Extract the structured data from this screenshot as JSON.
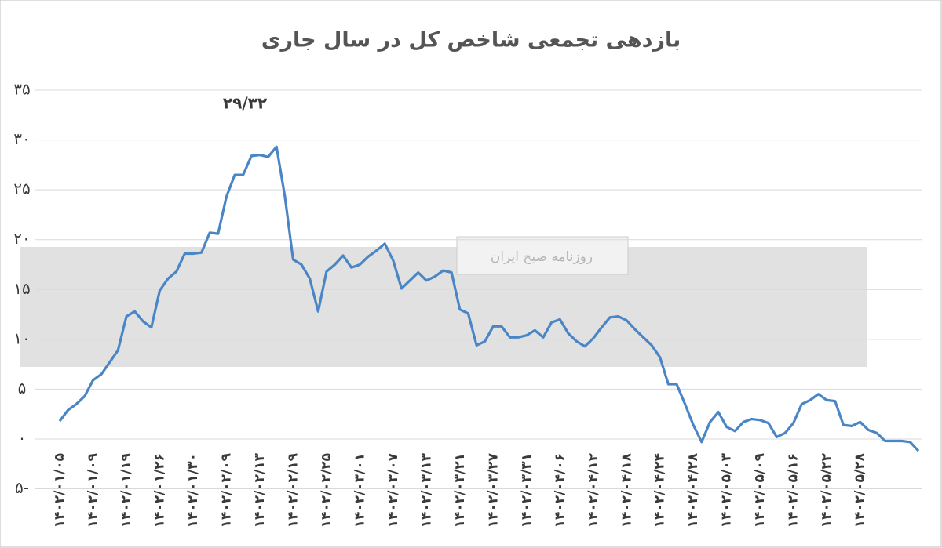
{
  "chart_data": {
    "type": "line",
    "title": "بازدهی تجمعی شاخص کل در سال جاری",
    "annotation": "۲۹/۳۲",
    "watermark": "روزنامه صبح ایران",
    "categories": [
      "۱۴۰۲/۰۱/۰۵",
      null,
      null,
      null,
      "۱۴۰۲/۰۱/۰۹",
      null,
      null,
      null,
      "۱۴۰۲/۰۱/۱۹",
      null,
      null,
      null,
      "۱۴۰۲/۰۱/۲۶",
      null,
      null,
      null,
      "۱۴۰۲/۰۱/۳۰",
      null,
      null,
      null,
      "۱۴۰۲/۰۲/۰۹",
      null,
      null,
      null,
      "۱۴۰۲/۰۲/۱۳",
      null,
      null,
      null,
      "۱۴۰۲/۰۲/۱۹",
      null,
      null,
      null,
      "۱۴۰۲/۰۲/۲۵",
      null,
      null,
      null,
      "۱۴۰۲/۰۳/۰۱",
      null,
      null,
      null,
      "۱۴۰۲/۰۳/۰۷",
      null,
      null,
      null,
      "۱۴۰۲/۰۳/۱۳",
      null,
      null,
      null,
      "۱۴۰۲/۰۳/۲۱",
      null,
      null,
      null,
      "۱۴۰۲/۰۳/۲۷",
      null,
      null,
      null,
      "۱۴۰۲/۰۳/۳۱",
      null,
      null,
      null,
      "۱۴۰۲/۰۴/۰۶",
      null,
      null,
      null,
      "۱۴۰۲/۰۴/۱۲",
      null,
      null,
      null,
      "۱۴۰۲/۰۴/۱۸",
      null,
      null,
      null,
      "۱۴۰۲/۰۴/۲۴",
      null,
      null,
      null,
      "۱۴۰۲/۰۴/۲۸",
      null,
      null,
      null,
      "۱۴۰۲/۰۵/۰۳",
      null,
      null,
      null,
      "۱۴۰۲/۰۵/۰۹",
      null,
      null,
      null,
      "۱۴۰۲/۰۵/۱۶",
      null,
      null,
      null,
      "۱۴۰۲/۰۵/۲۲",
      null,
      null,
      null,
      "۱۴۰۲/۰۵/۲۸",
      null,
      null,
      null,
      null,
      null,
      null,
      null
    ],
    "series": [
      {
        "name": "بازدهی تجمعی",
        "color": "#4a86c5",
        "values": [
          1.8,
          2.9,
          3.5,
          4.3,
          5.9,
          6.5,
          7.7,
          8.9,
          12.3,
          12.8,
          11.8,
          11.2,
          14.9,
          16.1,
          16.8,
          18.6,
          18.6,
          18.7,
          20.7,
          20.6,
          24.3,
          26.5,
          26.5,
          28.4,
          28.5,
          28.3,
          29.32,
          24.4,
          18.0,
          17.5,
          16.1,
          12.8,
          16.8,
          17.5,
          18.4,
          17.2,
          17.5,
          18.3,
          18.9,
          19.6,
          17.9,
          15.1,
          15.9,
          16.7,
          15.9,
          16.3,
          16.9,
          16.7,
          13.0,
          12.6,
          9.4,
          9.8,
          11.3,
          11.3,
          10.2,
          10.2,
          10.4,
          10.9,
          10.2,
          11.7,
          12.0,
          10.6,
          9.8,
          9.3,
          10.1,
          11.2,
          12.2,
          12.3,
          11.9,
          11.0,
          10.2,
          9.4,
          8.2,
          5.5,
          5.5,
          3.5,
          1.4,
          -0.3,
          1.7,
          2.7,
          1.2,
          0.8,
          1.7,
          2.0,
          1.9,
          1.6,
          0.2,
          0.6,
          1.6,
          3.5,
          3.9,
          4.5,
          3.9,
          3.8,
          1.4,
          1.3,
          1.7,
          0.9,
          0.6,
          -0.2,
          -0.2,
          -0.2,
          -0.3,
          -1.2
        ]
      }
    ],
    "ylim": [
      -5,
      35
    ],
    "yticks": [
      {
        "value": -5,
        "label": "۵-"
      },
      {
        "value": 0,
        "label": "۰"
      },
      {
        "value": 5,
        "label": "۵"
      },
      {
        "value": 10,
        "label": "۱۰"
      },
      {
        "value": 15,
        "label": "۱۵"
      },
      {
        "value": 20,
        "label": "۲۰"
      },
      {
        "value": 25,
        "label": "۲۵"
      },
      {
        "value": 30,
        "label": "۳۰"
      },
      {
        "value": 35,
        "label": "۳۵"
      }
    ],
    "grid": true
  }
}
